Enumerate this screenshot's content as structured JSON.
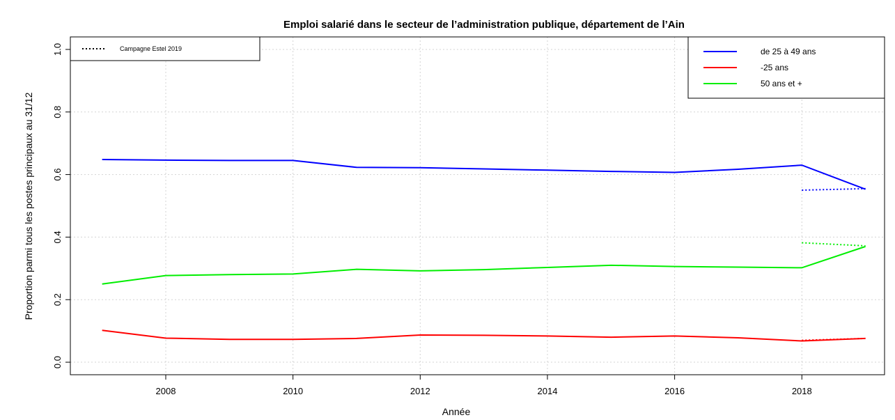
{
  "chart_data": {
    "type": "line",
    "title": "Emploi salarié dans le secteur de l’administration publique, département de l’Ain",
    "xlabel": "Année",
    "ylabel": "Proportion parmi tous les postes principaux au 31/12",
    "xlim": [
      2006.5,
      2019.3
    ],
    "ylim": [
      -0.04,
      1.04
    ],
    "x_ticks": [
      2008,
      2010,
      2012,
      2014,
      2016,
      2018
    ],
    "y_ticks": [
      0.0,
      0.2,
      0.4,
      0.6,
      0.8,
      1.0
    ],
    "x_tick_labels": [
      "2008",
      "2010",
      "2012",
      "2014",
      "2016",
      "2018"
    ],
    "y_tick_labels": [
      "0.0",
      "0.2",
      "0.4",
      "0.6",
      "0.8",
      "1.0"
    ],
    "grid": true,
    "x": [
      2007,
      2008,
      2009,
      2010,
      2011,
      2012,
      2013,
      2014,
      2015,
      2016,
      2017,
      2018,
      2019
    ],
    "series": [
      {
        "name": "de 25 à 49 ans",
        "color": "#0000ff",
        "values": [
          0.648,
          0.646,
          0.645,
          0.645,
          0.623,
          0.622,
          0.618,
          0.614,
          0.61,
          0.607,
          0.617,
          0.63,
          0.553
        ]
      },
      {
        "name": "-25 ans",
        "color": "#ff0000",
        "values": [
          0.102,
          0.077,
          0.073,
          0.073,
          0.076,
          0.087,
          0.086,
          0.084,
          0.08,
          0.084,
          0.078,
          0.068,
          0.076
        ]
      },
      {
        "name": "50 ans et +",
        "color": "#00ee00",
        "values": [
          0.25,
          0.277,
          0.28,
          0.282,
          0.297,
          0.292,
          0.296,
          0.303,
          0.31,
          0.306,
          0.304,
          0.302,
          0.37
        ]
      }
    ],
    "estel_series": [
      {
        "series": "de 25 à 49 ans",
        "color": "#0000ff",
        "x": [
          2018,
          2019
        ],
        "values": [
          0.55,
          0.555
        ]
      },
      {
        "series": "-25 ans",
        "color": "#ff0000",
        "x": [
          2018,
          2019
        ],
        "values": [
          0.07,
          0.076
        ]
      },
      {
        "series": "50 ans et +",
        "color": "#00ee00",
        "x": [
          2018,
          2019
        ],
        "values": [
          0.382,
          0.372
        ]
      }
    ],
    "legend_left": {
      "placement": "top-left",
      "entries": [
        {
          "label": "Campagne Estel 2019",
          "style": "dotted",
          "color": "#000000"
        }
      ]
    },
    "legend_right": {
      "placement": "top-right"
    }
  }
}
